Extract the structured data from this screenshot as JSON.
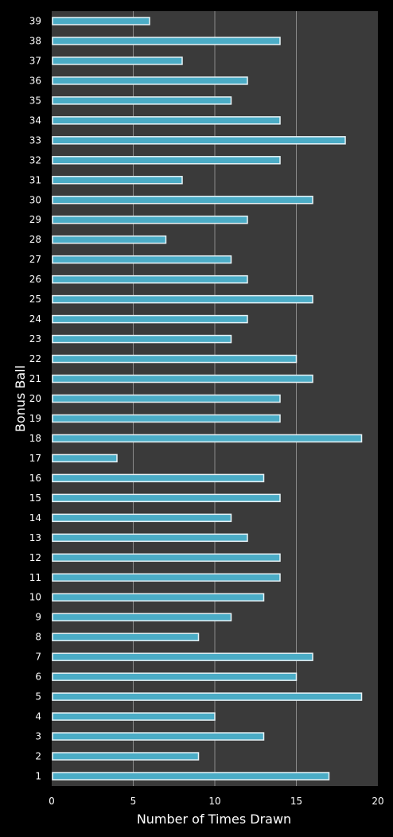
{
  "chart_data": {
    "type": "bar",
    "orientation": "horizontal",
    "xlabel": "Number of Times Drawn",
    "ylabel": "Bonus Ball",
    "xlim": [
      0,
      20
    ],
    "xticks": [
      "0",
      "5",
      "10",
      "15",
      "20"
    ],
    "grid": "vertical",
    "categories": [
      "1",
      "2",
      "3",
      "4",
      "5",
      "6",
      "7",
      "8",
      "9",
      "10",
      "11",
      "12",
      "13",
      "14",
      "15",
      "16",
      "17",
      "18",
      "19",
      "20",
      "21",
      "22",
      "23",
      "24",
      "25",
      "26",
      "27",
      "28",
      "29",
      "30",
      "31",
      "32",
      "33",
      "34",
      "35",
      "36",
      "37",
      "38",
      "39"
    ],
    "values": [
      17,
      9,
      13,
      10,
      19,
      15,
      16,
      9,
      11,
      13,
      14,
      14,
      12,
      11,
      14,
      13,
      4,
      19,
      14,
      14,
      16,
      15,
      11,
      12,
      16,
      12,
      11,
      7,
      12,
      16,
      8,
      14,
      18,
      14,
      11,
      12,
      8,
      14,
      6
    ],
    "colors": {
      "background": "#000000",
      "plot_area": "#3a3a3a",
      "bar_fill": "#4bacc6",
      "bar_border": "#e8f4f8",
      "gridline": "#8a8a8a",
      "text": "#ffffff"
    }
  }
}
